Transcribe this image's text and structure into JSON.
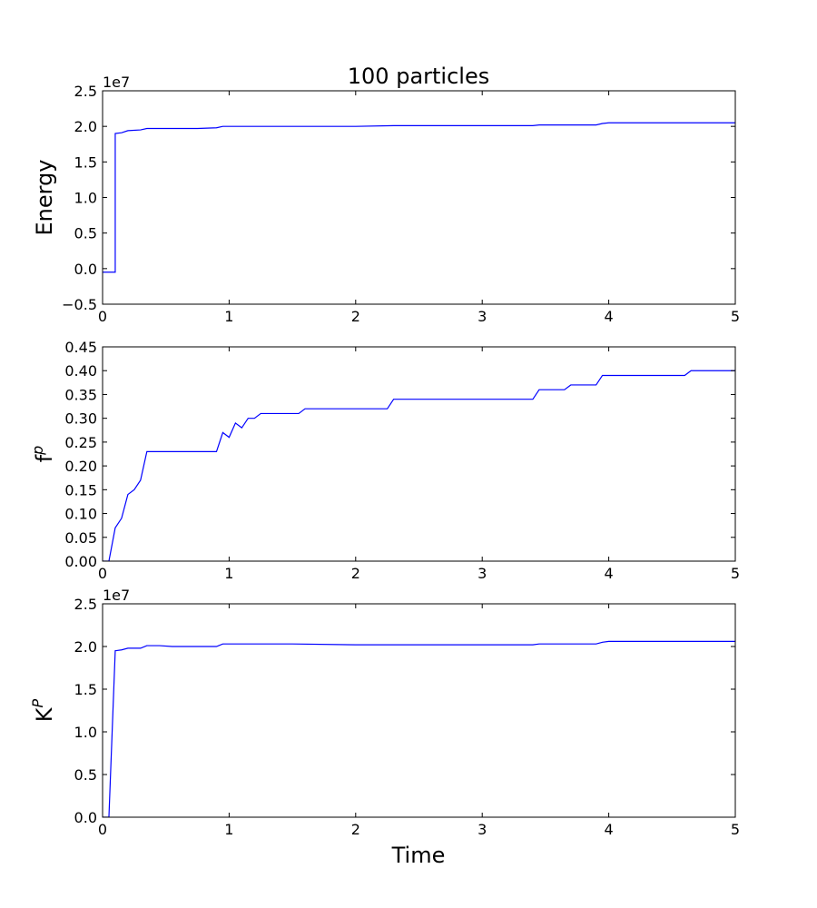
{
  "title": "100 particles",
  "xlabel": "Time",
  "chart_data": [
    {
      "type": "line",
      "ylabel": "Energy",
      "ylabel_base": "Energy",
      "ylabel_sup": "",
      "offset_text": "1e7",
      "xlim": [
        0,
        5
      ],
      "ylim": [
        -0.5,
        2.5
      ],
      "xticks": [
        0,
        1,
        2,
        3,
        4,
        5
      ],
      "xtick_labels": [
        "0",
        "1",
        "2",
        "3",
        "4",
        "5"
      ],
      "yticks": [
        -0.5,
        0.0,
        0.5,
        1.0,
        1.5,
        2.0,
        2.5
      ],
      "ytick_labels": [
        "−0.5",
        "0.0",
        "0.5",
        "1.0",
        "1.5",
        "2.0",
        "2.5"
      ],
      "grid": false,
      "series": [
        {
          "color": "#0000ff",
          "x": [
            0.0,
            0.05,
            0.1,
            0.1,
            0.15,
            0.2,
            0.3,
            0.35,
            0.45,
            0.55,
            0.65,
            0.75,
            0.9,
            0.95,
            1.0,
            1.5,
            2.0,
            2.3,
            2.5,
            3.0,
            3.4,
            3.45,
            3.5,
            3.9,
            3.95,
            4.0,
            4.5,
            5.0
          ],
          "y": [
            -0.05,
            -0.05,
            -0.05,
            1.9,
            1.91,
            1.94,
            1.95,
            1.97,
            1.97,
            1.97,
            1.97,
            1.97,
            1.98,
            2.0,
            2.0,
            2.0,
            2.0,
            2.01,
            2.01,
            2.01,
            2.01,
            2.02,
            2.02,
            2.02,
            2.04,
            2.05,
            2.05,
            2.05
          ]
        }
      ]
    },
    {
      "type": "line",
      "ylabel": "f^p",
      "ylabel_base": "f",
      "ylabel_sup": "p",
      "offset_text": "",
      "xlim": [
        0,
        5
      ],
      "ylim": [
        0.0,
        0.45
      ],
      "xticks": [
        0,
        1,
        2,
        3,
        4,
        5
      ],
      "xtick_labels": [
        "0",
        "1",
        "2",
        "3",
        "4",
        "5"
      ],
      "yticks": [
        0.0,
        0.05,
        0.1,
        0.15,
        0.2,
        0.25,
        0.3,
        0.35,
        0.4,
        0.45
      ],
      "ytick_labels": [
        "0.00",
        "0.05",
        "0.10",
        "0.15",
        "0.20",
        "0.25",
        "0.30",
        "0.35",
        "0.40",
        "0.45"
      ],
      "grid": false,
      "series": [
        {
          "color": "#0000ff",
          "x": [
            0.0,
            0.05,
            0.1,
            0.15,
            0.2,
            0.25,
            0.3,
            0.35,
            0.4,
            0.45,
            0.5,
            0.6,
            0.7,
            0.8,
            0.9,
            0.95,
            1.0,
            1.05,
            1.1,
            1.15,
            1.2,
            1.25,
            1.3,
            1.4,
            1.5,
            1.55,
            1.6,
            2.0,
            2.25,
            2.3,
            3.0,
            3.4,
            3.45,
            3.65,
            3.7,
            3.9,
            3.95,
            4.6,
            4.65,
            5.0
          ],
          "y": [
            0.0,
            0.0,
            0.07,
            0.09,
            0.14,
            0.15,
            0.17,
            0.23,
            0.23,
            0.23,
            0.23,
            0.23,
            0.23,
            0.23,
            0.23,
            0.27,
            0.26,
            0.29,
            0.28,
            0.3,
            0.3,
            0.31,
            0.31,
            0.31,
            0.31,
            0.31,
            0.32,
            0.32,
            0.32,
            0.34,
            0.34,
            0.34,
            0.36,
            0.36,
            0.37,
            0.37,
            0.39,
            0.39,
            0.4,
            0.4
          ]
        }
      ]
    },
    {
      "type": "line",
      "ylabel": "K^P",
      "ylabel_base": "K",
      "ylabel_sup": "P",
      "offset_text": "1e7",
      "xlim": [
        0,
        5
      ],
      "ylim": [
        0.0,
        2.5
      ],
      "xticks": [
        0,
        1,
        2,
        3,
        4,
        5
      ],
      "xtick_labels": [
        "0",
        "1",
        "2",
        "3",
        "4",
        "5"
      ],
      "yticks": [
        0.0,
        0.5,
        1.0,
        1.5,
        2.0,
        2.5
      ],
      "ytick_labels": [
        "0.0",
        "0.5",
        "1.0",
        "1.5",
        "2.0",
        "2.5"
      ],
      "grid": false,
      "series": [
        {
          "color": "#0000ff",
          "x": [
            0.0,
            0.05,
            0.1,
            0.15,
            0.2,
            0.3,
            0.35,
            0.45,
            0.55,
            0.65,
            0.75,
            0.9,
            0.95,
            1.0,
            1.5,
            2.0,
            2.3,
            2.5,
            3.0,
            3.4,
            3.45,
            3.5,
            3.9,
            3.95,
            4.0,
            4.5,
            5.0
          ],
          "y": [
            0.0,
            0.0,
            1.95,
            1.96,
            1.98,
            1.98,
            2.01,
            2.01,
            2.0,
            2.0,
            2.0,
            2.0,
            2.03,
            2.03,
            2.03,
            2.02,
            2.02,
            2.02,
            2.02,
            2.02,
            2.03,
            2.03,
            2.03,
            2.05,
            2.06,
            2.06,
            2.06
          ]
        }
      ]
    }
  ]
}
